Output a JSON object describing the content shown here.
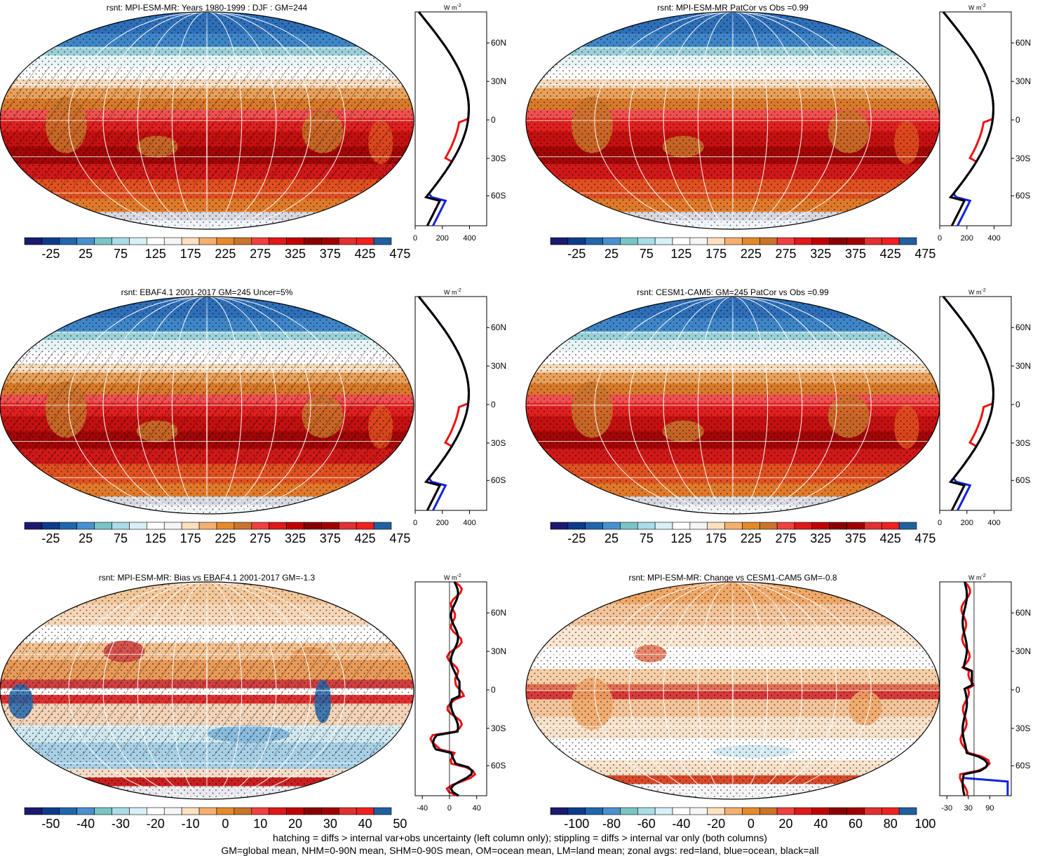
{
  "panels": [
    {
      "title": "rsnt: MPI-ESM-MR: Years 1980-1999 : DJF : GM=244",
      "kind": "clim",
      "hatch": true
    },
    {
      "title": "rsnt: MPI-ESM-MR PatCor vs Obs =0.99",
      "kind": "clim",
      "hatch": false
    },
    {
      "title": "rsnt: EBAF4.1 2001-2017 GM=245 Uncer=5%",
      "kind": "clim",
      "hatch": true
    },
    {
      "title": "rsnt: CESM1-CAM5: GM=245 PatCor vs Obs =0.99",
      "kind": "clim",
      "hatch": false
    },
    {
      "title": "rsnt: MPI-ESM-MR: Bias vs EBAF4.1 2001-2017 GM=-1.3",
      "kind": "bias",
      "hatch": true
    },
    {
      "title": "rsnt: MPI-ESM-MR: Change vs CESM1-CAM5 GM=-0.8",
      "kind": "change",
      "hatch": false
    }
  ],
  "colorbars": {
    "clim": {
      "labels": [
        "-25",
        "25",
        "75",
        "125",
        "175",
        "225",
        "275",
        "325",
        "375",
        "425",
        "475"
      ]
    },
    "bias": {
      "labels": [
        "-50",
        "-40",
        "-30",
        "-20",
        "-10",
        "0",
        "10",
        "20",
        "30",
        "40",
        "50"
      ]
    },
    "change": {
      "labels": [
        "-100",
        "-80",
        "-60",
        "-40",
        "-20",
        "0",
        "20",
        "40",
        "60",
        "80",
        "100"
      ]
    }
  },
  "palette": [
    "#1a1a6e",
    "#0d3b8c",
    "#2166ac",
    "#4a90d0",
    "#79c4c4",
    "#a9dde8",
    "#d8f0f5",
    "#ffffff",
    "#f5f5f5",
    "#fde0c0",
    "#f5b070",
    "#e58a2a",
    "#c8742a",
    "#f04040",
    "#e01818",
    "#c00000",
    "#8a0000",
    "#a00000",
    "#e03030",
    "#f02020",
    "#2060a0"
  ],
  "zonal": {
    "unit": "W m",
    "unit_sup": "-2",
    "lat_labels": [
      "60N",
      "30N",
      "0",
      "30S",
      "60S"
    ],
    "ticks_clim": [
      "0",
      "200",
      "400"
    ],
    "ticks_bias": [
      "-40",
      "0",
      "40"
    ],
    "ticks_change": [
      "-30",
      "30",
      "90"
    ],
    "line_colors": {
      "land": "#ee1111",
      "ocean": "#1122dd",
      "all": "#000000"
    }
  },
  "footer": {
    "line1": "hatching = diffs > internal var+obs uncertainty (left column only); stippling = diffs > internal var only (both columns)",
    "line2": "GM=global mean, NHM=0-90N mean, SHM=0-90S mean, OM=ocean mean, LM=land mean; zonal avgs: red=land, blue=ocean, black=all"
  }
}
